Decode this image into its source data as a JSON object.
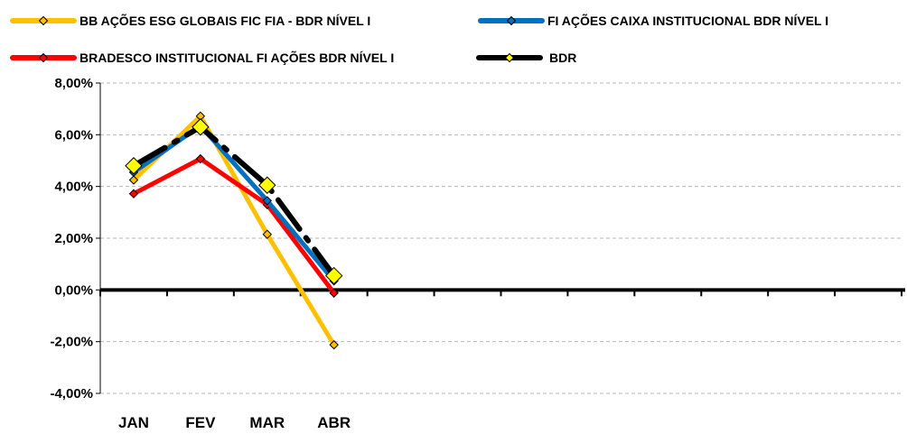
{
  "chart_data": {
    "type": "line",
    "categories": [
      "JAN",
      "FEV",
      "MAR",
      "ABR"
    ],
    "y_ticks": [
      "8,00%",
      "6,00%",
      "4,00%",
      "2,00%",
      "0,00%",
      "-2,00%",
      "-4,00%"
    ],
    "ylim": [
      -4,
      8
    ],
    "grid": true,
    "legend_position": "top",
    "series": [
      {
        "name": "BB AÇÕES ESG GLOBAIS FIC FIA - BDR NÍVEL I",
        "color": "#FFC000",
        "values": [
          4.25,
          6.72,
          2.15,
          -2.12
        ]
      },
      {
        "name": "FI AÇÕES CAIXA INSTITUCIONAL BDR NÍVEL I",
        "color": "#0070C0",
        "values": [
          4.55,
          6.35,
          3.45,
          0.35
        ]
      },
      {
        "name": "BRADESCO INSTITUCIONAL FI AÇÕES BDR NÍVEL I",
        "color": "#FF0000",
        "values": [
          3.72,
          5.07,
          3.3,
          -0.12
        ]
      },
      {
        "name": "BDR",
        "color": "#000000",
        "marker_color": "#FFFF00",
        "values": [
          4.8,
          6.3,
          4.05,
          0.55
        ]
      }
    ]
  }
}
